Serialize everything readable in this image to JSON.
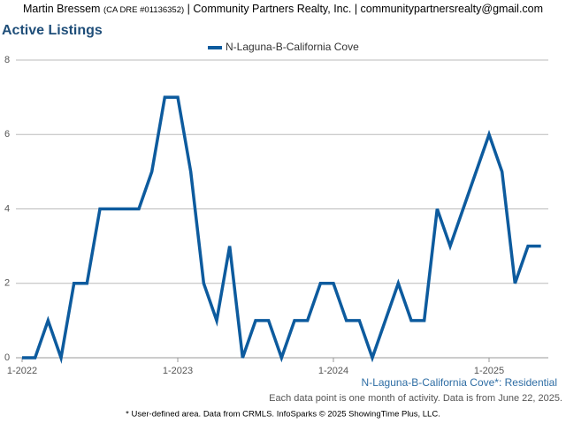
{
  "header": {
    "name": "Martin Bressem",
    "license": "(CA DRE #01136352)",
    "company": "| Community Partners Realty, Inc. | communitypartnersrealty@gmail.com"
  },
  "chart_data": {
    "type": "line",
    "title": "Active Listings",
    "categories": [
      "1-2022",
      null,
      null,
      null,
      null,
      null,
      null,
      null,
      null,
      null,
      null,
      null,
      "1-2023",
      null,
      null,
      null,
      null,
      null,
      null,
      null,
      null,
      null,
      null,
      null,
      "1-2024",
      null,
      null,
      null,
      null,
      null,
      null,
      null,
      null,
      null,
      null,
      null,
      "1-2025",
      null,
      null,
      null,
      null
    ],
    "series": [
      {
        "name": "N-Laguna-B-California Cove",
        "color": "#0d5b9e",
        "values": [
          0,
          0,
          1,
          0,
          2,
          2,
          4,
          4,
          4,
          4,
          5,
          7,
          7,
          5,
          2,
          1,
          3,
          0,
          1,
          1,
          0,
          1,
          1,
          2,
          2,
          1,
          1,
          0,
          1,
          2,
          1,
          1,
          4,
          3,
          4,
          5,
          6,
          5,
          2,
          3,
          3
        ]
      }
    ],
    "ylim": [
      0,
      8
    ],
    "yticks": [
      0,
      2,
      4,
      6,
      8
    ],
    "grid": true,
    "legend": "top"
  },
  "footer": {
    "area": "N-Laguna-B-California Cove*: Residential",
    "note": "Each data point is one month of activity. Data is from June 22, 2025.",
    "source": "* User-defined area. Data from CRMLS. InfoSparks © 2025 ShowingTime Plus, LLC."
  }
}
